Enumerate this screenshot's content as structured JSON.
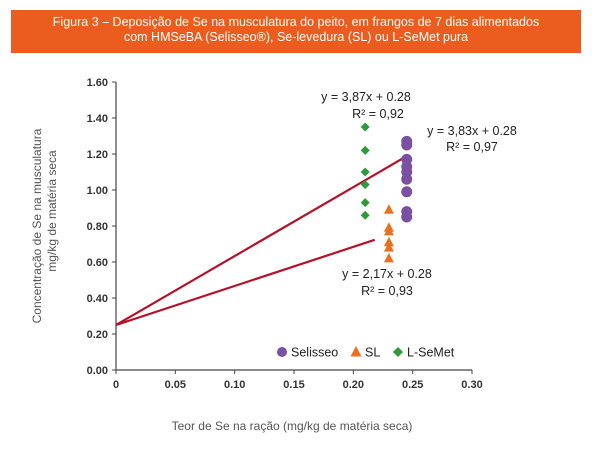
{
  "figure_title": {
    "line1": "Figura 3 – Deposição de Se na musculatura do peito, em frangos de 7 dias alimentados",
    "line2": "com HMSeBA (Selisseo®), Se-levedura (SL) ou L-SeMet pura"
  },
  "colors": {
    "banner": "#ea5d1e",
    "selisseo": "#7b4fa2",
    "sl": "#e8701e",
    "lsemet": "#2f9a3a",
    "trendline": "#b5122a"
  },
  "chart_data": {
    "type": "scatter",
    "xlabel": "Teor de Se na ração (mg/kg de matéria seca)",
    "ylabel_lines": [
      "Concentração de Se na musculatura",
      "mg/kg de matéria seca"
    ],
    "xlim": [
      0,
      0.3
    ],
    "ylim": [
      0,
      1.6
    ],
    "x_ticks": [
      "0",
      "0.05",
      "0.10",
      "0.15",
      "0.20",
      "0.25",
      "0.30"
    ],
    "x_tick_values": [
      0,
      0.05,
      0.1,
      0.15,
      0.2,
      0.25,
      0.3
    ],
    "y_ticks": [
      "0.00",
      "0.20",
      "0.40",
      "0.60",
      "0.80",
      "1.00",
      "1.20",
      "1.40",
      "1.60"
    ],
    "y_tick_values": [
      0,
      0.2,
      0.4,
      0.6,
      0.8,
      1.0,
      1.2,
      1.4,
      1.6
    ],
    "grid": false,
    "legend_position": "bottom-right",
    "series": [
      {
        "name": "Selisseo",
        "marker": "circle",
        "color": "#7b4fa2",
        "points": [
          [
            0.245,
            1.27
          ],
          [
            0.245,
            1.25
          ],
          [
            0.245,
            1.17
          ],
          [
            0.245,
            1.13
          ],
          [
            0.245,
            1.1
          ],
          [
            0.245,
            1.06
          ],
          [
            0.245,
            0.99
          ],
          [
            0.245,
            0.88
          ],
          [
            0.245,
            0.85
          ]
        ],
        "trendline": {
          "equation": "y = 3,83x + 0.28",
          "r2": "R² = 0,97",
          "x_end": 0.245
        }
      },
      {
        "name": "SL",
        "marker": "triangle",
        "color": "#e8701e",
        "points": [
          [
            0.23,
            0.89
          ],
          [
            0.23,
            0.79
          ],
          [
            0.23,
            0.77
          ],
          [
            0.23,
            0.71
          ],
          [
            0.23,
            0.68
          ],
          [
            0.23,
            0.62
          ]
        ],
        "trendline": {
          "equation": "y = 2,17x + 0.28",
          "r2": "R² = 0,93",
          "x_end": 0.218
        }
      },
      {
        "name": "L-SeMet",
        "marker": "diamond",
        "color": "#2f9a3a",
        "points": [
          [
            0.21,
            1.35
          ],
          [
            0.21,
            1.22
          ],
          [
            0.21,
            1.1
          ],
          [
            0.21,
            1.03
          ],
          [
            0.21,
            0.93
          ],
          [
            0.21,
            0.86
          ]
        ],
        "trendline": {
          "equation": "y = 3,87x + 0.28",
          "r2": "R² = 0,92",
          "x_end": null
        }
      }
    ],
    "trendline_intercept": 0.25
  }
}
